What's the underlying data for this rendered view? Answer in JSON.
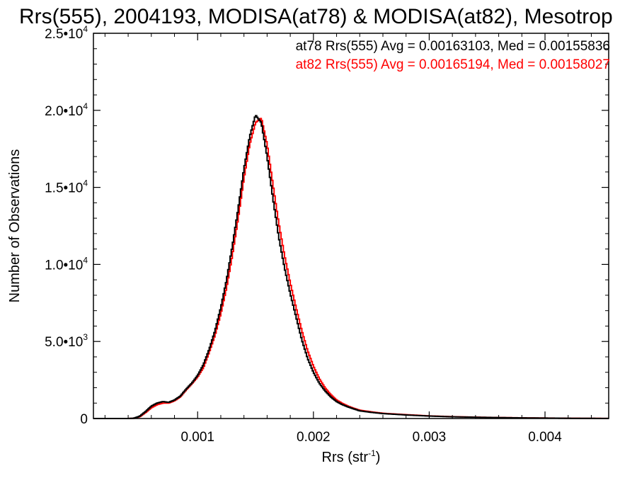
{
  "chart_data": {
    "type": "line",
    "title": "Rrs(555), 2004193, MODISA(at78) & MODISA(at82), Mesotrop",
    "xlabel": "Rrs (str",
    "xlabel_sup": "-1",
    "xlabel_close": ")",
    "ylabel": "Number of Observations",
    "xlim": [
      0.0001,
      0.00455
    ],
    "ylim": [
      0,
      25000
    ],
    "x_ticks": [
      {
        "value": 0.001,
        "label": "0.001"
      },
      {
        "value": 0.002,
        "label": "0.002"
      },
      {
        "value": 0.003,
        "label": "0.003"
      },
      {
        "value": 0.004,
        "label": "0.004"
      }
    ],
    "y_ticks": [
      {
        "value": 0,
        "mantissa": "0",
        "exp": ""
      },
      {
        "value": 5000,
        "mantissa": "5.0•10",
        "exp": "3"
      },
      {
        "value": 10000,
        "mantissa": "1.0•10",
        "exp": "4"
      },
      {
        "value": 15000,
        "mantissa": "1.5•10",
        "exp": "4"
      },
      {
        "value": 20000,
        "mantissa": "2.0•10",
        "exp": "4"
      },
      {
        "value": 25000,
        "mantissa": "2.5•10",
        "exp": "4"
      }
    ],
    "annotations": [
      {
        "text": "at78 Rrs(555) Avg = 0.00163103, Med = 0.00155836",
        "color": "#000000"
      },
      {
        "text": "at82 Rrs(555) Avg = 0.00165194, Med = 0.00158027",
        "color": "#ff0000"
      }
    ],
    "series": [
      {
        "color": "#000000",
        "x": [
          0.0001,
          0.0004,
          0.00045,
          0.0005,
          0.00055,
          0.0006,
          0.00065,
          0.0007,
          0.00075,
          0.0008,
          0.00085,
          0.0009,
          0.00095,
          0.001,
          0.00105,
          0.0011,
          0.00115,
          0.0012,
          0.00125,
          0.0013,
          0.00135,
          0.0014,
          0.00145,
          0.0015,
          0.00155,
          0.0016,
          0.00165,
          0.0017,
          0.00175,
          0.0018,
          0.00185,
          0.0019,
          0.00195,
          0.002,
          0.00205,
          0.0021,
          0.00215,
          0.0022,
          0.00225,
          0.0023,
          0.00235,
          0.0024,
          0.0025,
          0.0026,
          0.0028,
          0.003,
          0.0032,
          0.0035,
          0.0038,
          0.0042,
          0.00455
        ],
        "y": [
          0,
          0,
          20,
          150,
          450,
          800,
          1000,
          1100,
          1050,
          1200,
          1450,
          1900,
          2300,
          2800,
          3500,
          4500,
          5700,
          7200,
          9000,
          11200,
          13600,
          16200,
          18300,
          19700,
          19200,
          17000,
          14300,
          11800,
          9800,
          8100,
          6600,
          5100,
          3900,
          3000,
          2300,
          1800,
          1400,
          1100,
          900,
          750,
          620,
          500,
          400,
          320,
          230,
          160,
          110,
          70,
          40,
          15,
          5
        ]
      },
      {
        "color": "#ff0000",
        "x": [
          0.0001,
          0.0004,
          0.00045,
          0.0005,
          0.00055,
          0.0006,
          0.00065,
          0.0007,
          0.00075,
          0.0008,
          0.00085,
          0.0009,
          0.00095,
          0.001,
          0.00105,
          0.0011,
          0.00115,
          0.0012,
          0.00125,
          0.0013,
          0.00135,
          0.0014,
          0.00145,
          0.0015,
          0.00155,
          0.0016,
          0.00165,
          0.0017,
          0.00175,
          0.0018,
          0.00185,
          0.0019,
          0.00195,
          0.002,
          0.00205,
          0.0021,
          0.00215,
          0.0022,
          0.00225,
          0.0023,
          0.00235,
          0.0024,
          0.0025,
          0.0026,
          0.0028,
          0.003,
          0.0032,
          0.0035,
          0.0038,
          0.0042,
          0.00455
        ],
        "y": [
          0,
          0,
          15,
          120,
          380,
          700,
          900,
          1000,
          1000,
          1150,
          1400,
          1850,
          2250,
          2700,
          3300,
          4300,
          5400,
          6800,
          8500,
          10600,
          13000,
          15600,
          17800,
          19200,
          19500,
          17800,
          15200,
          12700,
          10600,
          8800,
          7200,
          5700,
          4400,
          3400,
          2600,
          2000,
          1550,
          1200,
          980,
          800,
          660,
          540,
          430,
          340,
          250,
          170,
          120,
          75,
          45,
          18,
          6
        ]
      }
    ]
  }
}
